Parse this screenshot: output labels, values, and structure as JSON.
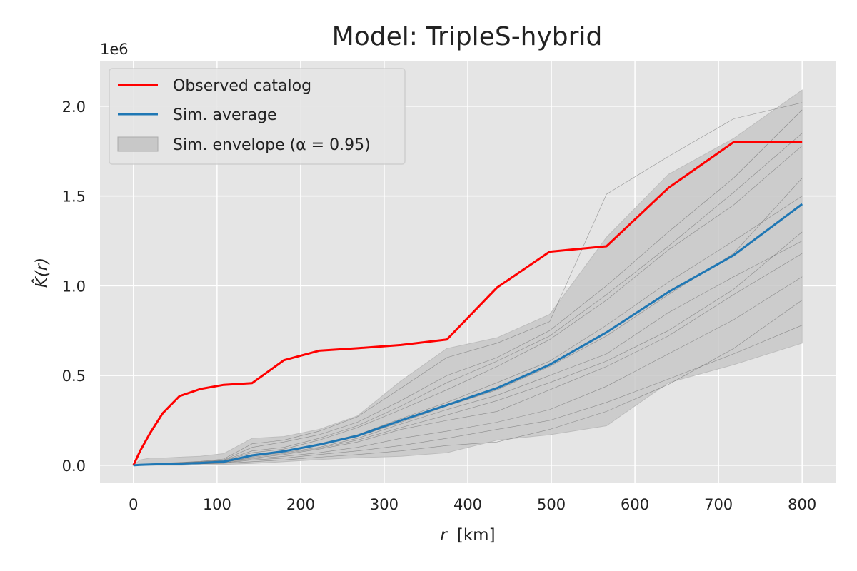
{
  "chart_data": {
    "type": "line",
    "title": "Model: TripleS-hybrid",
    "xlabel_var": "r",
    "xlabel_unit": "[km]",
    "ylabel": "K̂(r)",
    "y_offset_text": "1e6",
    "xlim": [
      -40,
      840
    ],
    "ylim": [
      -0.1,
      2.25
    ],
    "x_ticks": [
      0,
      100,
      200,
      300,
      400,
      500,
      600,
      700,
      800
    ],
    "y_ticks": [
      0.0,
      0.5,
      1.0,
      1.5,
      2.0
    ],
    "y_tick_labels": [
      "0.0",
      "0.5",
      "1.0",
      "1.5",
      "2.0"
    ],
    "grid": true,
    "legend_position": "top-left",
    "colors": {
      "observed": "#ff0000",
      "average": "#1f77b4",
      "envelope": "#c8c8c8",
      "simulations": "#555555",
      "background": "#e5e5e5",
      "grid": "#ffffff"
    },
    "legend": [
      {
        "key": "observed",
        "label": "Observed catalog",
        "kind": "line"
      },
      {
        "key": "average",
        "label": "Sim. average",
        "kind": "line"
      },
      {
        "key": "envelope",
        "label": "Sim. envelope (α = 0.95)",
        "kind": "patch"
      }
    ],
    "x": [
      0,
      8,
      20,
      35,
      55,
      80,
      108,
      142,
      180,
      222,
      268,
      320,
      375,
      435,
      498,
      566,
      640,
      718,
      800
    ],
    "series": [
      {
        "key": "observed",
        "name": "Observed catalog",
        "values": [
          0,
          0.08,
          0.18,
          0.29,
          0.385,
          0.425,
          0.448,
          0.458,
          0.585,
          0.638,
          0.652,
          0.67,
          0.7,
          0.99,
          1.19,
          1.22,
          1.545,
          1.8,
          1.8
        ]
      },
      {
        "key": "average",
        "name": "Sim. average",
        "values": [
          0,
          0.002,
          0.004,
          0.006,
          0.009,
          0.013,
          0.02,
          0.055,
          0.078,
          0.115,
          0.165,
          0.25,
          0.335,
          0.43,
          0.56,
          0.74,
          0.965,
          1.17,
          1.455
        ]
      }
    ],
    "envelope": {
      "name": "Sim. envelope (α = 0.95)",
      "lower": [
        0,
        0,
        0,
        0,
        0,
        0.002,
        0.005,
        0.01,
        0.02,
        0.032,
        0.042,
        0.05,
        0.07,
        0.14,
        0.17,
        0.22,
        0.46,
        0.56,
        0.68
      ],
      "upper": [
        0,
        0.03,
        0.04,
        0.04,
        0.045,
        0.05,
        0.065,
        0.15,
        0.16,
        0.2,
        0.275,
        0.47,
        0.65,
        0.71,
        0.84,
        1.27,
        1.62,
        1.82,
        2.09
      ]
    },
    "simulations": [
      [
        0,
        0.001,
        0.003,
        0.005,
        0.008,
        0.011,
        0.018,
        0.04,
        0.06,
        0.09,
        0.13,
        0.2,
        0.25,
        0.3,
        0.42,
        0.55,
        0.72,
        0.95,
        1.18
      ],
      [
        0,
        0.002,
        0.005,
        0.008,
        0.012,
        0.016,
        0.025,
        0.07,
        0.09,
        0.14,
        0.21,
        0.31,
        0.42,
        0.55,
        0.7,
        0.92,
        1.2,
        1.45,
        1.78
      ],
      [
        0,
        0.001,
        0.002,
        0.004,
        0.006,
        0.009,
        0.014,
        0.035,
        0.05,
        0.07,
        0.1,
        0.15,
        0.19,
        0.24,
        0.31,
        0.44,
        0.62,
        0.81,
        1.05
      ],
      [
        0,
        0.003,
        0.006,
        0.01,
        0.014,
        0.02,
        0.03,
        0.1,
        0.13,
        0.17,
        0.24,
        0.36,
        0.5,
        0.6,
        0.75,
        1.0,
        1.3,
        1.6,
        1.98
      ],
      [
        0,
        0.001,
        0.002,
        0.003,
        0.005,
        0.008,
        0.012,
        0.03,
        0.04,
        0.06,
        0.08,
        0.11,
        0.15,
        0.2,
        0.25,
        0.35,
        0.48,
        0.62,
        0.78
      ],
      [
        0,
        0.002,
        0.004,
        0.007,
        0.01,
        0.014,
        0.022,
        0.06,
        0.08,
        0.12,
        0.17,
        0.26,
        0.35,
        0.46,
        0.58,
        0.78,
        1.02,
        1.25,
        1.5
      ],
      [
        0,
        0.001,
        0.003,
        0.006,
        0.009,
        0.012,
        0.019,
        0.05,
        0.07,
        0.1,
        0.15,
        0.23,
        0.31,
        0.39,
        0.5,
        0.62,
        0.85,
        1.05,
        1.25
      ],
      [
        0,
        0.004,
        0.008,
        0.012,
        0.016,
        0.022,
        0.035,
        0.12,
        0.14,
        0.19,
        0.27,
        0.43,
        0.6,
        0.68,
        0.8,
        1.51,
        1.72,
        1.93,
        2.02
      ],
      [
        0,
        0.001,
        0.002,
        0.004,
        0.006,
        0.008,
        0.011,
        0.02,
        0.03,
        0.045,
        0.06,
        0.08,
        0.11,
        0.13,
        0.2,
        0.3,
        0.45,
        0.65,
        0.92
      ],
      [
        0,
        0.002,
        0.004,
        0.006,
        0.009,
        0.013,
        0.02,
        0.055,
        0.075,
        0.11,
        0.16,
        0.24,
        0.33,
        0.42,
        0.55,
        0.72,
        0.95,
        1.18,
        1.6
      ],
      [
        0,
        0.001,
        0.003,
        0.005,
        0.007,
        0.01,
        0.016,
        0.045,
        0.065,
        0.095,
        0.14,
        0.21,
        0.28,
        0.36,
        0.46,
        0.58,
        0.75,
        0.98,
        1.3
      ],
      [
        0,
        0.002,
        0.005,
        0.009,
        0.013,
        0.018,
        0.028,
        0.08,
        0.1,
        0.15,
        0.22,
        0.33,
        0.46,
        0.58,
        0.72,
        0.95,
        1.22,
        1.52,
        1.85
      ]
    ]
  }
}
